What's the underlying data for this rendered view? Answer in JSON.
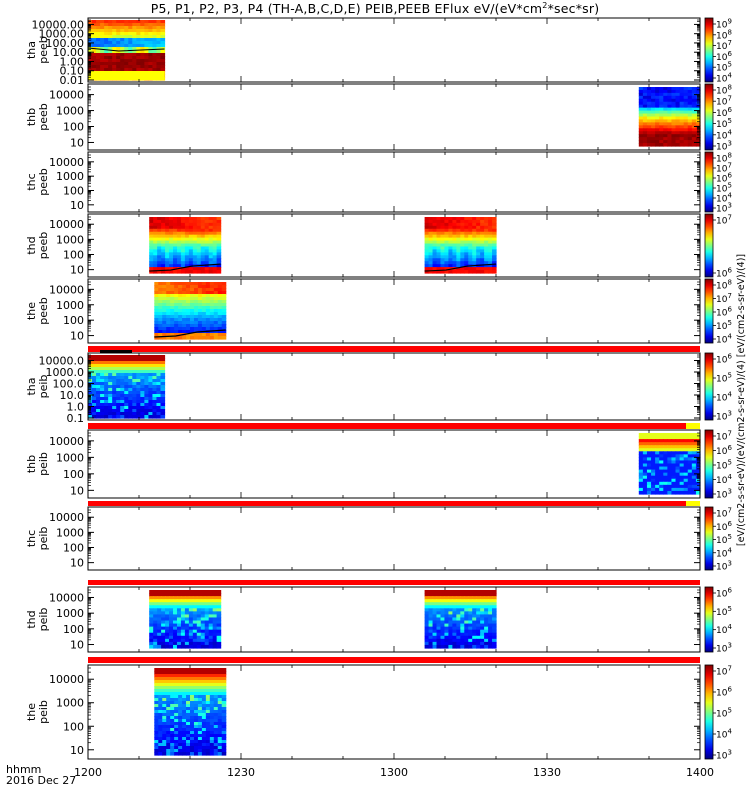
{
  "title_prefix": "P5, P1, P2, P3, P4 (TH-A,B,C,D,E) PEIB,PEEB EFlux eV/(eV*cm",
  "title_sup": "2",
  "title_suffix": "*sec*sr)",
  "time_unit": "hhmm",
  "date": "2016 Dec 27",
  "colorbar_label": "[eV/(cm2-s-sr-eV)/(eV/(cm2-s-sr-eV)/(4) [eV/(cm2-s-sr-eV)/(4)]",
  "chart_data": {
    "type": "heatmap",
    "x": {
      "label": "hhmm",
      "range": [
        "12:00",
        "14:00"
      ],
      "ticks": [
        "1200",
        "1230",
        "1300",
        "1330",
        "1400"
      ]
    },
    "panels": [
      {
        "probe": "tha",
        "product": "peeb",
        "ylim": [
          0.01,
          30000
        ],
        "y_ticks": [
          "10000.00",
          "1000.00",
          "100.00",
          "10.00",
          "1.00",
          "0.10",
          "0.01"
        ],
        "cbar_ticks": [
          "10^9",
          "10^8",
          "10^7",
          "10^6",
          "10^5",
          "10^4"
        ],
        "data_coverage": [
          [
            "12:00",
            "12:15"
          ]
        ]
      },
      {
        "probe": "thb",
        "product": "peeb",
        "ylim": [
          6,
          30000
        ],
        "y_ticks": [
          "10000",
          "1000",
          "100",
          "10"
        ],
        "cbar_ticks": [
          "10^8",
          "10^7",
          "10^6",
          "10^5",
          "10^4",
          "10^3"
        ],
        "data_coverage": [
          [
            "13:48",
            "14:00"
          ]
        ]
      },
      {
        "probe": "thc",
        "product": "peeb",
        "ylim": [
          6,
          30000
        ],
        "y_ticks": [
          "10000",
          "1000",
          "100",
          "10"
        ],
        "cbar_ticks": [
          "10^8",
          "10^7",
          "10^6",
          "10^5",
          "10^4",
          "10^3"
        ],
        "data_coverage": []
      },
      {
        "probe": "thd",
        "product": "peeb",
        "ylim": [
          6,
          30000
        ],
        "y_ticks": [
          "10000",
          "1000",
          "100",
          "10"
        ],
        "cbar_ticks": [
          "10^7",
          "10^6"
        ],
        "data_coverage": [
          [
            "12:12",
            "12:26"
          ],
          [
            "13:06",
            "13:20"
          ]
        ]
      },
      {
        "probe": "the",
        "product": "peeb",
        "ylim": [
          6,
          30000
        ],
        "y_ticks": [
          "10000",
          "1000",
          "100",
          "10"
        ],
        "cbar_ticks": [
          "10^8",
          "10^7",
          "10^6",
          "10^5",
          "10^4"
        ],
        "data_coverage": [
          [
            "12:13",
            "12:27"
          ]
        ]
      },
      {
        "probe": "tha",
        "product": "peib",
        "ylim": [
          0.1,
          30000
        ],
        "y_ticks": [
          "10000.0",
          "1000.0",
          "100.0",
          "10.0",
          "1.0",
          "0.1"
        ],
        "cbar_ticks": [
          "10^6",
          "10^5",
          "10^4",
          "10^3"
        ],
        "data_coverage": [
          [
            "12:00",
            "12:15"
          ]
        ]
      },
      {
        "probe": "thb",
        "product": "peib",
        "ylim": [
          6,
          30000
        ],
        "y_ticks": [
          "10000",
          "1000",
          "100",
          "10"
        ],
        "cbar_ticks": [
          "10^7",
          "10^6",
          "10^5",
          "10^4",
          "10^3"
        ],
        "data_coverage": [
          [
            "13:48",
            "14:00"
          ]
        ]
      },
      {
        "probe": "thc",
        "product": "peib",
        "ylim": [
          6,
          30000
        ],
        "y_ticks": [
          "10000",
          "1000",
          "100",
          "10"
        ],
        "cbar_ticks": [
          "10^7",
          "10^6",
          "10^5",
          "10^4",
          "10^3"
        ],
        "data_coverage": []
      },
      {
        "probe": "thd",
        "product": "peib",
        "ylim": [
          6,
          30000
        ],
        "y_ticks": [
          "10000",
          "1000",
          "100",
          "10"
        ],
        "cbar_ticks": [
          "10^6",
          "10^5",
          "10^4",
          "10^3"
        ],
        "data_coverage": [
          [
            "12:12",
            "12:26"
          ],
          [
            "13:06",
            "13:20"
          ]
        ]
      },
      {
        "probe": "the",
        "product": "peib",
        "ylim": [
          6,
          30000
        ],
        "y_ticks": [
          "10000",
          "1000",
          "100",
          "10"
        ],
        "cbar_ticks": [
          "10^7",
          "10^6",
          "10^5",
          "10^4",
          "10^3"
        ],
        "data_coverage": [
          [
            "12:13",
            "12:27"
          ]
        ]
      }
    ]
  }
}
